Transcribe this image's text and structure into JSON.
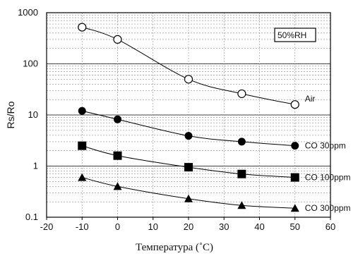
{
  "chart_data": {
    "type": "line",
    "xlabel": "Температура (˚С)",
    "ylabel": "Rs/Ro",
    "x_scale": "linear",
    "y_scale": "log",
    "xlim": [
      -20,
      60
    ],
    "ylim": [
      0.1,
      1000
    ],
    "x_ticks": [
      "-20",
      "-10",
      "0",
      "10",
      "20",
      "30",
      "40",
      "50",
      "60"
    ],
    "y_ticks": [
      "0.1",
      "1",
      "10",
      "100",
      "1000"
    ],
    "grid": true,
    "annotation": "50%RH",
    "series": [
      {
        "name": "Air",
        "marker": "open-circle",
        "x": [
          -10,
          0,
          20,
          35,
          50
        ],
        "y": [
          520,
          300,
          50,
          26,
          16
        ]
      },
      {
        "name": "CO 30ppm",
        "marker": "filled-circle",
        "x": [
          -10,
          0,
          20,
          35,
          50
        ],
        "y": [
          12,
          8.2,
          3.9,
          3.0,
          2.5
        ]
      },
      {
        "name": "CO 100ppm",
        "marker": "filled-square",
        "x": [
          -10,
          0,
          20,
          35,
          50
        ],
        "y": [
          2.5,
          1.6,
          0.95,
          0.7,
          0.6
        ]
      },
      {
        "name": "CO 300ppm",
        "marker": "filled-triangle",
        "x": [
          -10,
          0,
          20,
          35,
          50
        ],
        "y": [
          0.6,
          0.4,
          0.23,
          0.17,
          0.15
        ]
      }
    ]
  }
}
